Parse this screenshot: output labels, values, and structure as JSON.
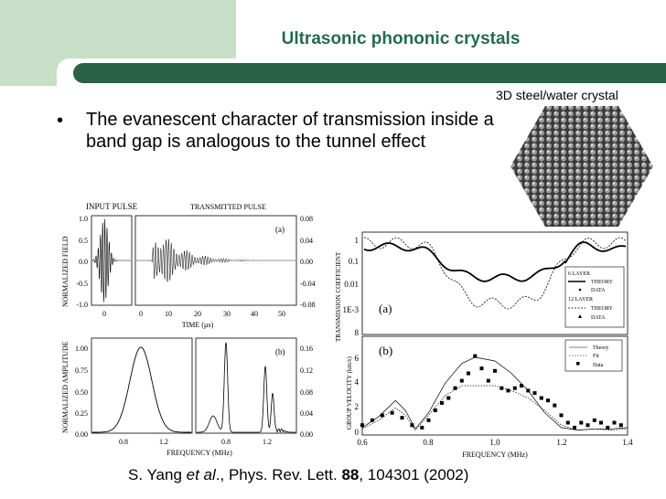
{
  "slide": {
    "title": "Ultrasonic phononic crystals",
    "bullet": "The evanescent character of transmission inside a band gap is analogous to the tunnel effect",
    "crystal_label": "3D steel/water crystal",
    "citation": {
      "authors": "S. Yang ",
      "et_al": "et al",
      "journal": "., Phys. Rev. Lett. ",
      "volume": "88",
      "pages": ", 104301 (2002)"
    }
  },
  "figure": {
    "pulse": {
      "input_label": "INPUT PULSE",
      "transmitted_label": "TRANSMITTED PULSE",
      "panel_label": "(a)",
      "ylabel": "NORMALIZED FIELD",
      "xlabel": "TIME (µs)",
      "y_left_ticks": [
        "1.0",
        "0.5",
        "0.0",
        "-0.5",
        "-1.0"
      ],
      "y_right_ticks": [
        "0.08",
        "0.04",
        "0.00",
        "-0.04",
        "-0.08"
      ],
      "x_left_ticks": [
        "0"
      ],
      "x_right_ticks": [
        "0",
        "10",
        "20",
        "30",
        "40",
        "50"
      ]
    },
    "amplitude": {
      "panel_label": "(b)",
      "ylabel": "NORMALIZED AMPLITUDE",
      "xlabel": "FREQUENCY (MHz)",
      "y_left_ticks": [
        "1.00",
        "0.75",
        "0.50",
        "0.25",
        "0.00"
      ],
      "y_right_ticks": [
        "0.16",
        "0.12",
        "0.08",
        "0.04",
        "0.00"
      ],
      "x_left_ticks": [
        "0.8",
        "1.2"
      ],
      "x_right_ticks": [
        "0.8",
        "1.2"
      ]
    },
    "transmission": {
      "panel_label": "(a)",
      "ylabel": "TRANSMISSION COEFFICIENT",
      "y_ticks": [
        "1",
        "0.1",
        "0.01",
        "1E-3",
        "8"
      ],
      "legend": [
        "6 LAYER",
        "THEORY",
        "DATA",
        "12 LAYER",
        "THEORY",
        "DATA"
      ]
    },
    "velocity": {
      "panel_label": "(b)",
      "ylabel": "GROUP VELOCITY (km/s)",
      "xlabel": "FREQUENCY (MHz)",
      "y_ticks": [
        "6",
        "4",
        "2",
        "0"
      ],
      "x_ticks": [
        "0.6",
        "0.8",
        "1.0",
        "1.2",
        "1.4"
      ],
      "legend": [
        "Theory",
        "Fit",
        "Data"
      ]
    }
  },
  "chart_data": [
    {
      "type": "line",
      "title": "",
      "xlabel": "FREQUENCY (MHz)",
      "ylabel": "GROUP VELOCITY (km/s)",
      "xlim": [
        0.6,
        1.4
      ],
      "ylim": [
        0,
        8
      ],
      "series": [
        {
          "name": "Theory",
          "x": [
            0.6,
            0.65,
            0.7,
            0.73,
            0.76,
            0.8,
            0.85,
            0.9,
            0.94,
            1.0,
            1.05,
            1.1,
            1.15,
            1.2,
            1.25,
            1.3,
            1.35,
            1.4
          ],
          "y": [
            0.6,
            1.5,
            2.8,
            2.0,
            0.5,
            1.8,
            4.2,
            5.8,
            6.3,
            6.0,
            5.0,
            3.6,
            1.8,
            0.6,
            0.4,
            0.5,
            0.5,
            0.6
          ]
        },
        {
          "name": "Fit",
          "x": [
            0.6,
            0.65,
            0.7,
            0.73,
            0.76,
            0.8,
            0.85,
            0.9,
            0.94,
            1.0,
            1.05,
            1.1,
            1.15,
            1.2,
            1.25,
            1.3,
            1.35,
            1.4
          ],
          "y": [
            0.5,
            1.2,
            2.2,
            1.6,
            0.4,
            1.6,
            3.2,
            4.0,
            4.0,
            4.0,
            3.6,
            3.0,
            2.0,
            0.8,
            0.4,
            0.5,
            0.4,
            0.5
          ]
        },
        {
          "name": "Data",
          "x": [
            0.6,
            0.63,
            0.66,
            0.69,
            0.72,
            0.75,
            0.78,
            0.8,
            0.82,
            0.84,
            0.86,
            0.88,
            0.9,
            0.92,
            0.94,
            0.96,
            0.98,
            1.0,
            1.02,
            1.04,
            1.06,
            1.08,
            1.1,
            1.12,
            1.14,
            1.16,
            1.18,
            1.2,
            1.22,
            1.24,
            1.26,
            1.28,
            1.3,
            1.32,
            1.34,
            1.36,
            1.38
          ],
          "y": [
            0.8,
            1.2,
            1.6,
            1.8,
            1.4,
            0.8,
            0.6,
            1.2,
            2.0,
            2.6,
            3.0,
            3.8,
            4.4,
            5.0,
            6.4,
            5.4,
            4.4,
            5.2,
            3.8,
            3.6,
            3.8,
            4.0,
            3.6,
            3.4,
            3.0,
            2.8,
            2.4,
            1.6,
            1.0,
            0.6,
            1.0,
            0.8,
            1.2,
            1.0,
            0.6,
            1.0,
            0.8
          ]
        }
      ],
      "legend": "top-right"
    }
  ]
}
